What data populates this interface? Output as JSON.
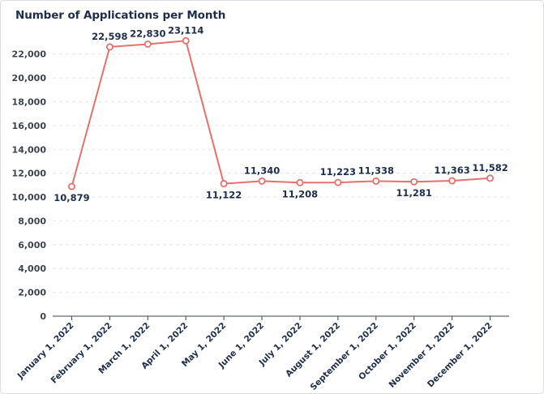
{
  "chart_data": {
    "type": "line",
    "title": "Number of Applications per Month",
    "xlabel": "",
    "ylabel": "",
    "ylim": [
      0,
      23000
    ],
    "yticks": [
      0,
      2000,
      4000,
      6000,
      8000,
      10000,
      12000,
      14000,
      16000,
      18000,
      20000,
      22000
    ],
    "ytick_labels": [
      "0",
      "2,000",
      "4,000",
      "6,000",
      "8,000",
      "10,000",
      "12,000",
      "14,000",
      "16,000",
      "18,000",
      "20,000",
      "22,000"
    ],
    "categories": [
      "January 1, 2022",
      "February 1, 2022",
      "March 1, 2022",
      "April 1, 2022",
      "May 1, 2022",
      "June 1, 2022",
      "July 1, 2022",
      "August 1, 2022",
      "September 1, 2022",
      "October 1, 2022",
      "November 1, 2022",
      "December 1, 2022"
    ],
    "values": [
      10879,
      22598,
      22830,
      23114,
      11122,
      11340,
      11208,
      11223,
      11338,
      11281,
      11363,
      11582
    ],
    "value_labels": [
      "10,879",
      "22,598",
      "22,830",
      "23,114",
      "11,122",
      "11,340",
      "11,208",
      "11,223",
      "11,338",
      "11,281",
      "11,363",
      "11,582"
    ],
    "label_position": [
      "below",
      "above",
      "above",
      "above",
      "below",
      "above",
      "below",
      "above",
      "above",
      "below",
      "above",
      "above"
    ],
    "grid": true,
    "legend": "none",
    "colors": {
      "line": "#e8706c",
      "marker_fill": "#ffffff",
      "grid": "#e6e7eb",
      "axis": "#3d4250",
      "text": "#1f2d4d"
    }
  }
}
